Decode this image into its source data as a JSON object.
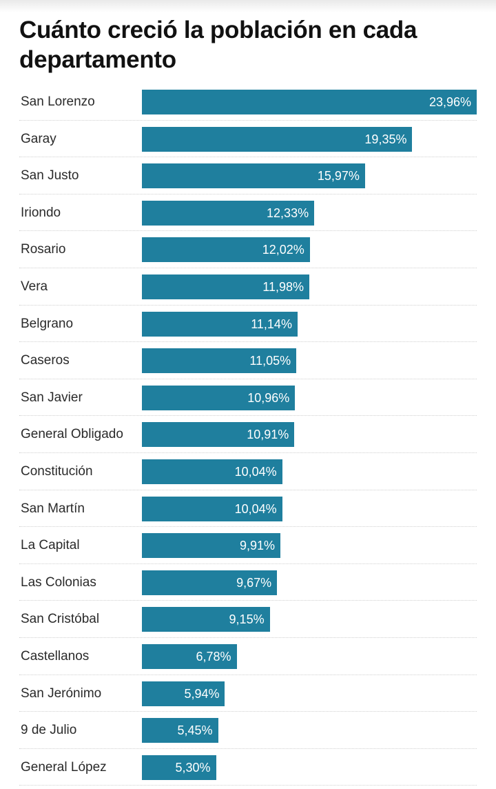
{
  "title": "Cuánto creció la población en cada departamento",
  "chart_data": {
    "type": "bar",
    "orientation": "horizontal",
    "title": "Cuánto creció la población en cada departamento",
    "bar_color": "#1f7f9e",
    "xlim": [
      0,
      23.96
    ],
    "grid": false,
    "categories": [
      "San Lorenzo",
      "Garay",
      "San Justo",
      "Iriondo",
      "Rosario",
      "Vera",
      "Belgrano",
      "Caseros",
      "San Javier",
      "General Obligado",
      "Constitución",
      "San Martín",
      "La Capital",
      "Las Colonias",
      "San Cristóbal",
      "Castellanos",
      "San Jerónimo",
      "9 de Julio",
      "General López"
    ],
    "values": [
      23.96,
      19.35,
      15.97,
      12.33,
      12.02,
      11.98,
      11.14,
      11.05,
      10.96,
      10.91,
      10.04,
      10.04,
      9.91,
      9.67,
      9.15,
      6.78,
      5.94,
      5.45,
      5.3
    ],
    "value_labels": [
      "23,96%",
      "19,35%",
      "15,97%",
      "12,33%",
      "12,02%",
      "11,98%",
      "11,14%",
      "11,05%",
      "10,96%",
      "10,91%",
      "10,04%",
      "10,04%",
      "9,91%",
      "9,67%",
      "9,15%",
      "6,78%",
      "5,94%",
      "5,45%",
      "5,30%"
    ]
  }
}
